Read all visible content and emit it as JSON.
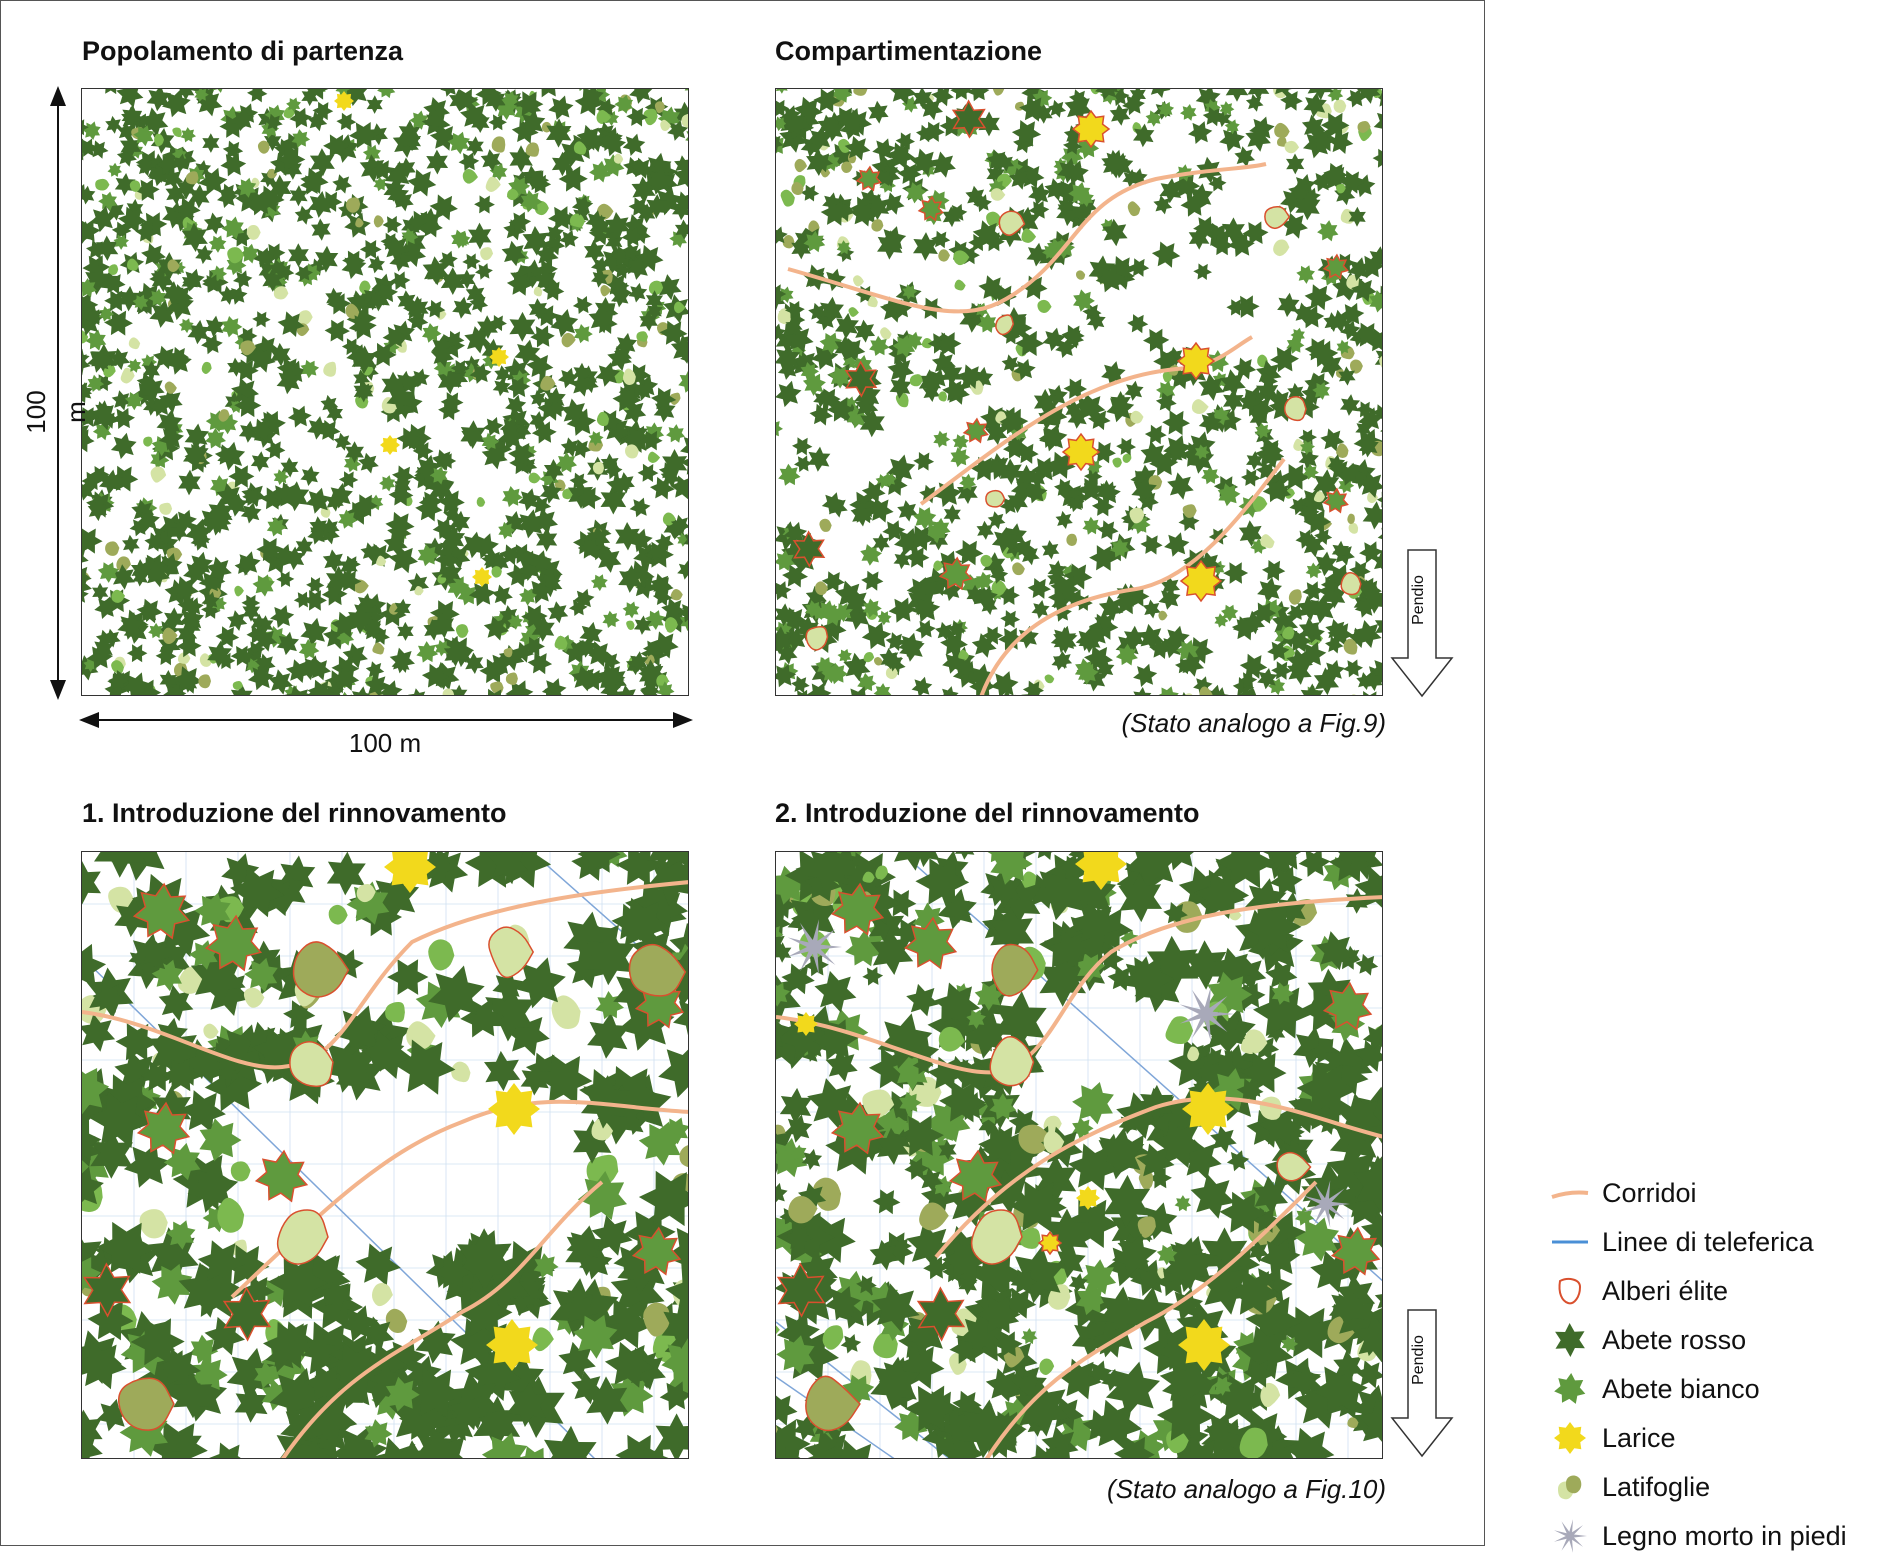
{
  "panels": [
    {
      "id": "p1",
      "title": "Popolamento di partenza"
    },
    {
      "id": "p2",
      "title": "Compartimentazione",
      "note": "(Stato analogo a Fig.9)"
    },
    {
      "id": "p3",
      "title": "1. Introduzione del rinnovamento"
    },
    {
      "id": "p4",
      "title": "2. Introduzione del rinnovamento",
      "note": "(Stato analogo a Fig.10)"
    }
  ],
  "dimensions": {
    "width_label": "100 m",
    "height_label": "100 m"
  },
  "slope_label": "Pendio",
  "legend": [
    {
      "symbol": "corridor-line",
      "label": "Corridoi"
    },
    {
      "symbol": "cableway-line",
      "label": "Linee di teleferica"
    },
    {
      "symbol": "elite-outline",
      "label": "Alberi élite"
    },
    {
      "symbol": "spruce-star",
      "label": "Abete rosso"
    },
    {
      "symbol": "fir-star",
      "label": "Abete bianco"
    },
    {
      "symbol": "larch-star",
      "label": "Larice"
    },
    {
      "symbol": "broadleaf-blob",
      "label": "Latifoglie"
    },
    {
      "symbol": "deadwood-star",
      "label": "Legno morto in piedi"
    }
  ],
  "colors": {
    "spruce": "#3f6b2a",
    "fir": "#5f9a3e",
    "larch": "#f2d91c",
    "broadleaf_light": "#d4e3a4",
    "broadleaf_mid": "#9eaa5a",
    "broadleaf_green": "#7cb94f",
    "corridor": "#f3b48c",
    "cableway": "#7fa6d8",
    "elite_outline": "#d9502e",
    "deadwood": "#a8a9b9"
  }
}
